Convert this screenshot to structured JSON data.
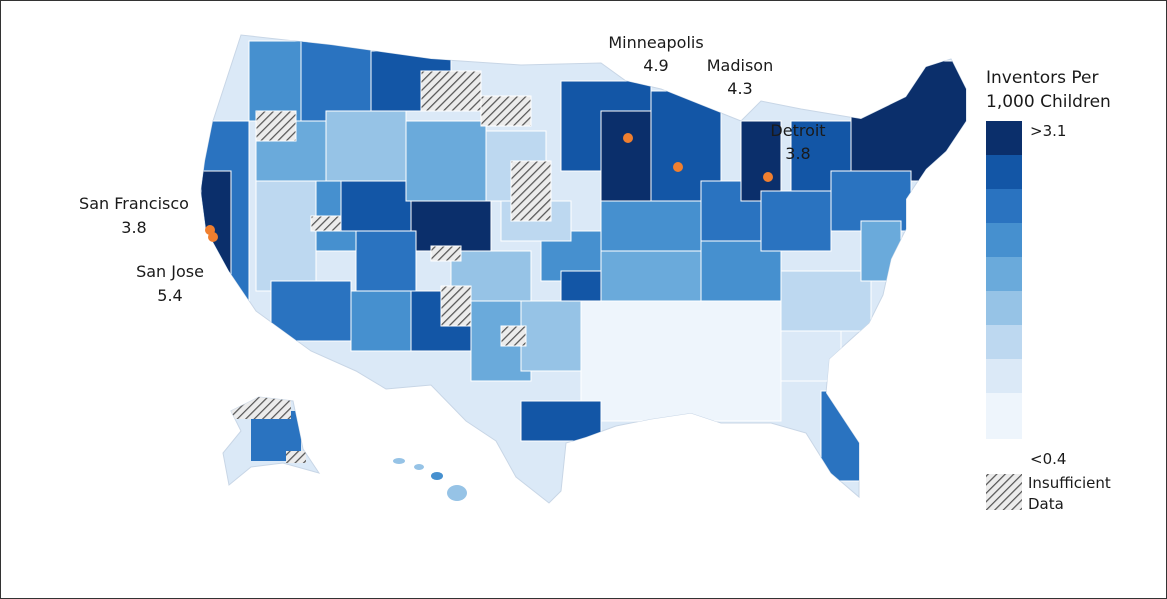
{
  "map": {
    "cities": [
      {
        "name": "Minneapolis",
        "value": "4.9"
      },
      {
        "name": "Madison",
        "value": "4.3"
      },
      {
        "name": "Detroit",
        "value": "3.8"
      },
      {
        "name": "San Francisco",
        "value": "3.8"
      },
      {
        "name": "San Jose",
        "value": "5.4"
      }
    ],
    "marker_color": "#f07f2f"
  },
  "legend": {
    "title_line1": "Inventors Per",
    "title_line2": "1,000 Children",
    "high_label": ">3.1",
    "low_label": "<0.4",
    "insufficient_line1": "Insufficient",
    "insufficient_line2": "Data",
    "colors": [
      "#0b2f6b",
      "#1356a6",
      "#2a73c0",
      "#4690cf",
      "#6aaadb",
      "#96c3e6",
      "#bdd8f0",
      "#dbe9f7",
      "#eef5fc"
    ]
  }
}
